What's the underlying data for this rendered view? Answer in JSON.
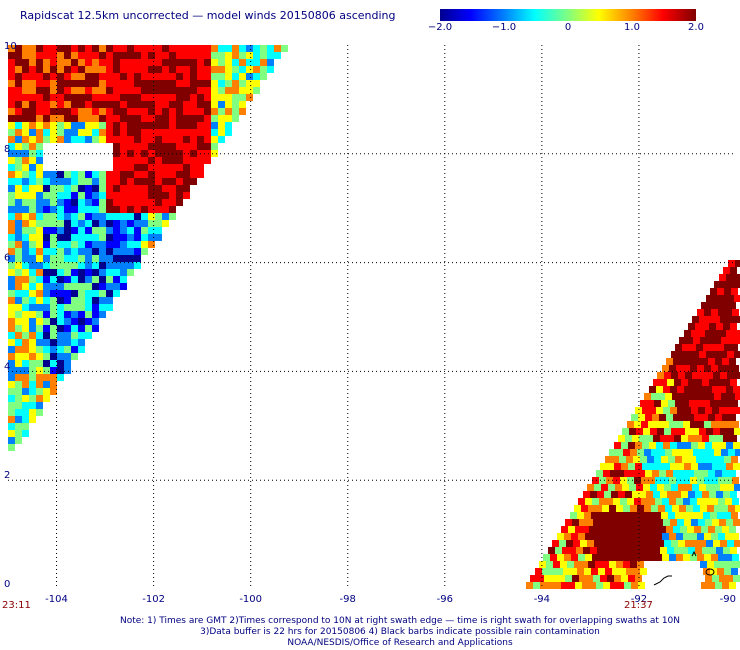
{
  "title": "Rapidscat 12.5km uncorrected — model winds 20150806 ascending",
  "colorbar": {
    "labels": [
      "−2.0",
      "−1.0",
      "0",
      "1.0",
      "2.0"
    ],
    "range": [
      -2.0,
      2.0
    ]
  },
  "axes": {
    "x_ticks": [
      "-104",
      "-102",
      "-100",
      "-98",
      "-96",
      "-94",
      "-92",
      "-90"
    ],
    "y_ticks": [
      "10",
      "8",
      "6",
      "4",
      "2",
      "0"
    ],
    "lon_range": [
      -105,
      -90
    ],
    "lat_range": [
      0,
      10
    ]
  },
  "swath_times": {
    "left": "23:11",
    "right": "21:37"
  },
  "notes": [
    "Note: 1) Times are GMT 2)Times correspond to 10N at right swath edge — time is right swath for overlapping swaths at 10N",
    "3)Data buffer is 22 hrs for 20150806 4) Black barbs indicate possible rain contamination",
    "NOAA/NESDIS/Office of Research and Applications"
  ],
  "colors": {
    "label": "#000080",
    "time": "#8b0000",
    "grid": "#000000",
    "scale": [
      "#00008f",
      "#0000ff",
      "#0080ff",
      "#00ffff",
      "#80ff80",
      "#ffff00",
      "#ff8000",
      "#ff0000",
      "#800000"
    ]
  }
}
